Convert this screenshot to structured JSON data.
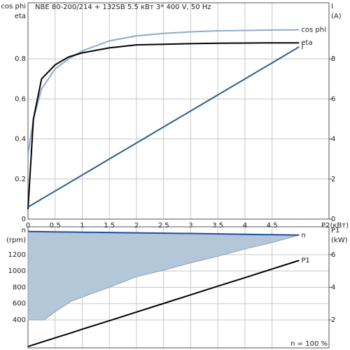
{
  "chart_data": [
    {
      "type": "line",
      "title": "NBE 80-200/214 + 132SB   5.5 кВт   3* 400 V, 50 Hz",
      "y_label_lines": [
        "cos phi",
        "eta"
      ],
      "y2_label_lines": [
        "I",
        "(A)"
      ],
      "x_label": "P2(кВт)",
      "xlim": [
        0,
        5.55
      ],
      "ylim": [
        0,
        1.08
      ],
      "y2lim": [
        0,
        10.8
      ],
      "xticks": [
        0,
        0.5,
        1,
        1.5,
        2,
        2.5,
        3,
        3.5,
        4,
        4.5
      ],
      "yticks": [
        0,
        0.2,
        0.4,
        0.6,
        0.8
      ],
      "y2ticks": [
        0,
        2,
        4,
        6,
        8
      ],
      "grid": true,
      "x": [
        0,
        0.1,
        0.25,
        0.5,
        0.75,
        1,
        1.5,
        2,
        2.5,
        3,
        3.5,
        4,
        4.5,
        5
      ],
      "series": [
        {
          "name": "cos phi",
          "color": "#8eaacb",
          "values": [
            0.32,
            0.5,
            0.65,
            0.75,
            0.8,
            0.84,
            0.89,
            0.915,
            0.927,
            0.935,
            0.94,
            0.942,
            0.944,
            0.945
          ]
        },
        {
          "name": "eta",
          "color": "#000000",
          "values": [
            0.05,
            0.5,
            0.7,
            0.77,
            0.81,
            0.83,
            0.855,
            0.87,
            0.873,
            0.876,
            0.878,
            0.879,
            0.88,
            0.88
          ]
        },
        {
          "name": "I",
          "color": "#2a5f8f",
          "axis": "y2",
          "values": [
            0.6,
            0.76,
            1.0,
            1.4,
            1.8,
            2.2,
            3.0,
            3.8,
            4.6,
            5.4,
            6.2,
            7.0,
            7.8,
            8.6
          ]
        }
      ]
    },
    {
      "type": "line",
      "y_label_lines": [
        "n",
        "(rpm)"
      ],
      "y2_label_lines": [
        "P1",
        "(kW)"
      ],
      "annotation": "n  = 100 %",
      "xlim": [
        0,
        5.55
      ],
      "ylim": [
        57,
        1542
      ],
      "y2lim": [
        0.285,
        7.71
      ],
      "yticks": [
        400,
        600,
        800,
        1000,
        1200
      ],
      "y2ticks": [
        2,
        4,
        6
      ],
      "grid": true,
      "x": [
        0,
        0.3,
        0.5,
        0.8,
        1,
        1.5,
        2,
        2.5,
        3,
        3.5,
        4,
        4.5,
        5
      ],
      "series": [
        {
          "name": "n",
          "color": "#1f4e9a",
          "fill": "#b4c7d9",
          "values": [
            1485,
            1482,
            1480,
            1478,
            1476,
            1472,
            1468,
            1464,
            1460,
            1455,
            1450,
            1445,
            1440
          ],
          "lower": [
            400,
            400,
            500,
            630,
            680,
            800,
            930,
            1010,
            1100,
            1180,
            1270,
            1350,
            1440
          ]
        },
        {
          "name": "P1",
          "color": "#000000",
          "axis": "y2",
          "values": [
            0.37,
            0.69,
            0.9,
            1.21,
            1.43,
            1.95,
            2.48,
            3.01,
            3.54,
            4.07,
            4.59,
            5.12,
            5.65
          ]
        }
      ]
    }
  ]
}
